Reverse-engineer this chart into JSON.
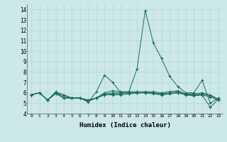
{
  "xlabel": "Humidex (Indice chaleur)",
  "ylabel": "",
  "xlim": [
    -0.5,
    23.5
  ],
  "ylim": [
    4,
    14.5
  ],
  "yticks": [
    4,
    5,
    6,
    7,
    8,
    9,
    10,
    11,
    12,
    13,
    14
  ],
  "xticks": [
    0,
    1,
    2,
    3,
    4,
    5,
    6,
    7,
    8,
    9,
    10,
    11,
    12,
    13,
    14,
    15,
    16,
    17,
    18,
    19,
    20,
    21,
    22,
    23
  ],
  "bg_color": "#cce8e8",
  "line_color": "#1a6b5a",
  "grid_color": "#b8d8d0",
  "series": [
    [
      5.8,
      6.0,
      5.3,
      6.1,
      5.8,
      5.5,
      5.5,
      5.1,
      6.1,
      7.7,
      7.0,
      6.0,
      6.1,
      8.3,
      13.9,
      10.8,
      9.3,
      7.6,
      6.6,
      6.0,
      6.0,
      7.2,
      5.0,
      5.5
    ],
    [
      5.8,
      6.0,
      5.3,
      6.0,
      5.7,
      5.5,
      5.5,
      5.2,
      5.5,
      6.0,
      6.2,
      6.1,
      6.1,
      6.1,
      6.1,
      6.1,
      6.0,
      6.1,
      6.2,
      5.9,
      5.9,
      6.0,
      5.8,
      5.4
    ],
    [
      5.8,
      6.0,
      5.3,
      6.0,
      5.5,
      5.5,
      5.5,
      5.3,
      5.5,
      5.9,
      6.0,
      6.0,
      6.0,
      6.0,
      6.0,
      6.0,
      5.9,
      6.0,
      6.1,
      5.9,
      5.8,
      5.9,
      5.7,
      5.3
    ],
    [
      5.8,
      6.0,
      5.3,
      6.0,
      5.5,
      5.5,
      5.5,
      5.3,
      5.5,
      5.8,
      5.9,
      5.9,
      5.9,
      6.0,
      6.0,
      6.0,
      5.8,
      5.9,
      6.0,
      5.8,
      5.8,
      5.8,
      5.6,
      5.3
    ],
    [
      5.8,
      6.0,
      5.3,
      5.9,
      5.5,
      5.5,
      5.5,
      5.2,
      5.5,
      5.8,
      5.8,
      5.8,
      5.9,
      6.0,
      6.0,
      5.9,
      5.8,
      5.9,
      6.0,
      5.8,
      5.7,
      5.8,
      4.6,
      5.4
    ]
  ]
}
